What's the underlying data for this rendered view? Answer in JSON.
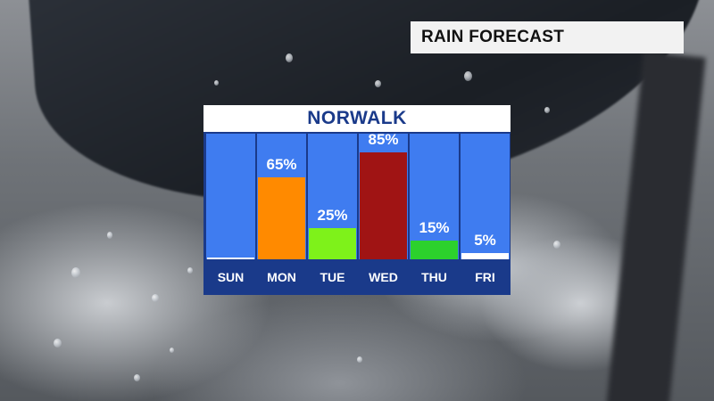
{
  "header": {
    "title": "RAIN FORECAST"
  },
  "chart_data": {
    "type": "bar",
    "title": "NORWALK",
    "categories": [
      "SUN",
      "MON",
      "TUE",
      "WED",
      "THU",
      "FRI"
    ],
    "values": [
      0,
      65,
      25,
      85,
      15,
      5
    ],
    "value_labels": [
      "",
      "65%",
      "25%",
      "85%",
      "15%",
      "5%"
    ],
    "ylim": [
      0,
      100
    ],
    "bar_colors": [
      "#3f7cf0",
      "#ff8a00",
      "#7ef21a",
      "#a01414",
      "#2cd12c",
      "#ffffff"
    ],
    "column_background": "#3f7cf0",
    "panel_color": "#1a3a8a",
    "grid": false,
    "xlabel": "",
    "ylabel": ""
  }
}
